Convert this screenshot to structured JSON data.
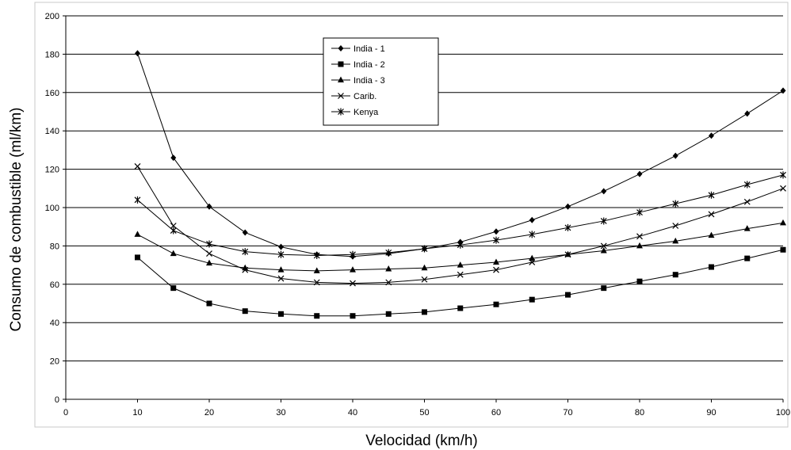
{
  "chart_data": {
    "type": "line",
    "title": "",
    "xlabel": "Velocidad (km/h)",
    "ylabel": "Consumo de combustible (ml/km)",
    "xlim": [
      0,
      100
    ],
    "ylim": [
      0,
      200
    ],
    "xticks": [
      0,
      10,
      20,
      30,
      40,
      50,
      60,
      70,
      80,
      90,
      100
    ],
    "yticks": [
      0,
      20,
      40,
      60,
      80,
      100,
      120,
      140,
      160,
      180,
      200
    ],
    "xtick_labels": [
      "0",
      "10",
      "20",
      "30",
      "40",
      "50",
      "60",
      "70",
      "80",
      "90",
      "100"
    ],
    "ytick_labels": [
      "0",
      "20",
      "40",
      "60",
      "80",
      "100",
      "120",
      "140",
      "160",
      "180",
      "200"
    ],
    "grid": "horizontal",
    "legend_position": "top-center",
    "x": [
      10,
      15,
      20,
      25,
      30,
      35,
      40,
      45,
      50,
      55,
      60,
      65,
      70,
      75,
      80,
      85,
      90,
      95,
      100
    ],
    "series": [
      {
        "name": "India - 1",
        "marker": "diamond",
        "values": [
          180.5,
          126,
          100.5,
          87,
          79.5,
          75.5,
          74.5,
          76,
          78.5,
          82,
          87.5,
          93.5,
          100.5,
          108.5,
          117.5,
          127,
          137.5,
          149,
          161
        ]
      },
      {
        "name": "India - 2",
        "marker": "square",
        "values": [
          74,
          58,
          50,
          46,
          44.5,
          43.5,
          43.5,
          44.5,
          45.5,
          47.5,
          49.5,
          52,
          54.5,
          58,
          61.5,
          65,
          69,
          73.5,
          78
        ]
      },
      {
        "name": "India - 3",
        "marker": "triangle",
        "values": [
          86,
          76,
          71,
          68.5,
          67.5,
          67,
          67.5,
          68,
          68.5,
          70,
          71.5,
          73.5,
          75.5,
          77.5,
          80,
          82.5,
          85.5,
          89,
          92
        ]
      },
      {
        "name": "Carib.",
        "marker": "x",
        "values": [
          121.5,
          90.5,
          76,
          67.5,
          63,
          61,
          60.5,
          61,
          62.5,
          65,
          67.5,
          71.5,
          75.5,
          80,
          85,
          90.5,
          96.5,
          103,
          110
        ]
      },
      {
        "name": "Kenya",
        "marker": "star",
        "values": [
          104,
          88,
          81,
          77,
          75.5,
          75,
          75.5,
          76.5,
          78.5,
          80.5,
          83,
          86,
          89.5,
          93,
          97.5,
          102,
          106.5,
          112,
          117
        ]
      }
    ]
  }
}
